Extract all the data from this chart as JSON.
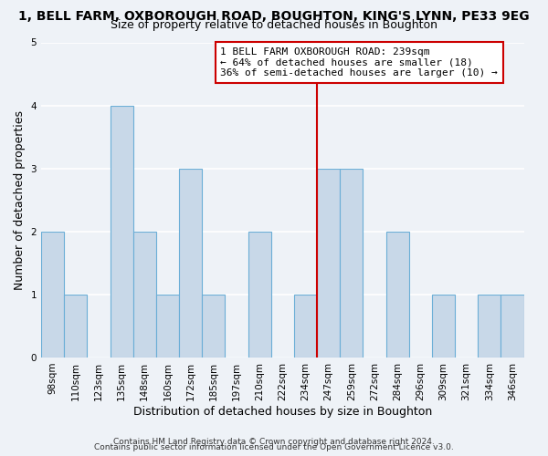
{
  "title": "1, BELL FARM, OXBOROUGH ROAD, BOUGHTON, KING'S LYNN, PE33 9EG",
  "subtitle": "Size of property relative to detached houses in Boughton",
  "xlabel": "Distribution of detached houses by size in Boughton",
  "ylabel": "Number of detached properties",
  "bin_labels": [
    "98sqm",
    "110sqm",
    "123sqm",
    "135sqm",
    "148sqm",
    "160sqm",
    "172sqm",
    "185sqm",
    "197sqm",
    "210sqm",
    "222sqm",
    "234sqm",
    "247sqm",
    "259sqm",
    "272sqm",
    "284sqm",
    "296sqm",
    "309sqm",
    "321sqm",
    "334sqm",
    "346sqm"
  ],
  "bar_heights": [
    2,
    1,
    0,
    4,
    2,
    1,
    3,
    1,
    0,
    2,
    0,
    1,
    3,
    3,
    0,
    2,
    0,
    1,
    0,
    1,
    1
  ],
  "bar_color": "#c8d8e8",
  "bar_edge_color": "#6baed6",
  "ylim": [
    0,
    5
  ],
  "yticks": [
    0,
    1,
    2,
    3,
    4,
    5
  ],
  "reference_line_x": 11.5,
  "reference_line_color": "#cc0000",
  "annotation_box_text": "1 BELL FARM OXBOROUGH ROAD: 239sqm\n← 64% of detached houses are smaller (18)\n36% of semi-detached houses are larger (10) →",
  "annotation_box_color": "#cc0000",
  "footer_line1": "Contains HM Land Registry data © Crown copyright and database right 2024.",
  "footer_line2": "Contains public sector information licensed under the Open Government Licence v3.0.",
  "background_color": "#eef2f7",
  "grid_color": "#ffffff",
  "title_fontsize": 10,
  "subtitle_fontsize": 9,
  "axis_label_fontsize": 9,
  "tick_fontsize": 7.5,
  "footer_fontsize": 6.5,
  "annotation_fontsize": 8
}
